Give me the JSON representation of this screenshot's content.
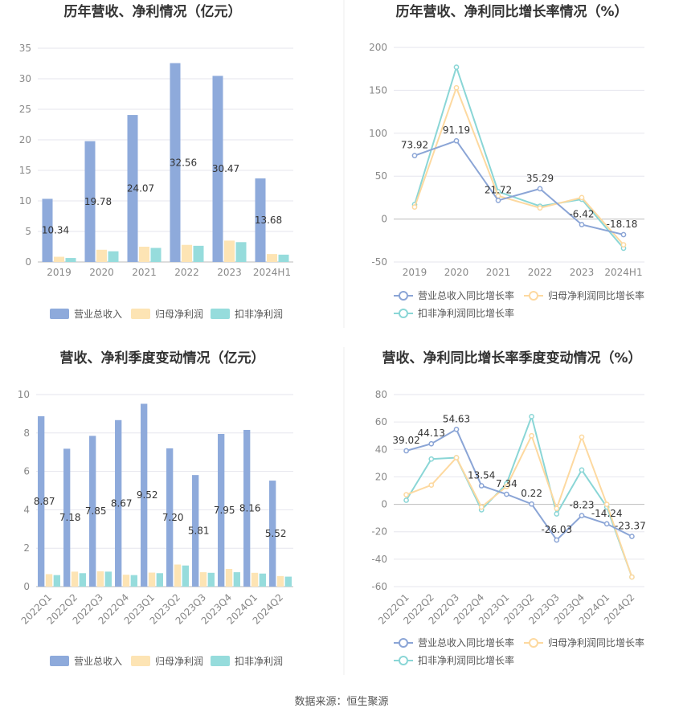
{
  "colors": {
    "revenue": "#8eaadb",
    "parent_profit": "#fde4b4",
    "deducted_profit": "#96dcdc",
    "revenue_line": "#8ba5d6",
    "parent_line": "#fdd9a0",
    "deducted_line": "#8ad6d6"
  },
  "chart_data": [
    {
      "type": "bar",
      "title": "历年营收、净利情况（亿元）",
      "categories": [
        "2019",
        "2020",
        "2021",
        "2022",
        "2023",
        "2024H1"
      ],
      "ylim": [
        0,
        35
      ],
      "yticks": [
        0,
        5,
        10,
        15,
        20,
        25,
        30,
        35
      ],
      "grid": true,
      "legend_position": "bottom",
      "series": [
        {
          "name": "营业总收入",
          "values": [
            10.34,
            19.78,
            24.07,
            32.56,
            30.47,
            13.68
          ],
          "labels": [
            "10.34",
            "19.78",
            "24.07",
            "32.56",
            "30.47",
            "13.68"
          ]
        },
        {
          "name": "归母净利润",
          "values": [
            0.85,
            2.0,
            2.5,
            2.8,
            3.5,
            1.3
          ]
        },
        {
          "name": "扣非净利润",
          "values": [
            0.65,
            1.75,
            2.3,
            2.65,
            3.25,
            1.2
          ]
        }
      ]
    },
    {
      "type": "line",
      "title": "历年营收、净利同比增长率情况（%）",
      "categories": [
        "2019",
        "2020",
        "2021",
        "2022",
        "2023",
        "2024H1"
      ],
      "ylim": [
        -50,
        200
      ],
      "yticks": [
        -50,
        0,
        50,
        100,
        150,
        200
      ],
      "grid": true,
      "legend_position": "bottom",
      "series": [
        {
          "name": "营业总收入同比增长率",
          "values": [
            73.92,
            91.19,
            21.72,
            35.29,
            -6.42,
            -18.18
          ],
          "labels": [
            "73.92",
            "91.19",
            "21.72",
            "35.29",
            "-6.42",
            "-18.18"
          ]
        },
        {
          "name": "归母净利润同比增长率",
          "values": [
            14,
            153,
            27,
            13,
            25,
            -30
          ]
        },
        {
          "name": "扣非净利润同比增长率",
          "values": [
            17,
            177,
            32,
            15,
            23,
            -34
          ]
        }
      ]
    },
    {
      "type": "bar",
      "title": "营收、净利季度变动情况（亿元）",
      "categories": [
        "2022Q1",
        "2022Q2",
        "2022Q3",
        "2022Q4",
        "2023Q1",
        "2023Q2",
        "2023Q3",
        "2023Q4",
        "2024Q1",
        "2024Q2"
      ],
      "ylim": [
        0,
        10
      ],
      "yticks": [
        0,
        2,
        4,
        6,
        8,
        10
      ],
      "grid": true,
      "legend_position": "bottom",
      "series": [
        {
          "name": "营业总收入",
          "values": [
            8.87,
            7.18,
            7.85,
            8.67,
            9.52,
            7.2,
            5.81,
            7.95,
            8.16,
            5.52
          ],
          "labels": [
            "8.87",
            "7.18",
            "7.85",
            "8.67",
            "9.52",
            "7.20",
            "5.81",
            "7.95",
            "8.16",
            "5.52"
          ]
        },
        {
          "name": "归母净利润",
          "values": [
            0.65,
            0.78,
            0.8,
            0.62,
            0.73,
            1.15,
            0.75,
            0.92,
            0.72,
            0.55
          ]
        },
        {
          "name": "扣非净利润",
          "values": [
            0.6,
            0.7,
            0.78,
            0.6,
            0.7,
            1.1,
            0.72,
            0.75,
            0.68,
            0.52
          ]
        }
      ]
    },
    {
      "type": "line",
      "title": "营收、净利同比增长率季度变动情况（%）",
      "categories": [
        "2022Q1",
        "2022Q2",
        "2022Q3",
        "2022Q4",
        "2023Q1",
        "2023Q2",
        "2023Q3",
        "2023Q4",
        "2024Q1",
        "2024Q2"
      ],
      "ylim": [
        -60,
        80
      ],
      "yticks": [
        -60,
        -40,
        -20,
        0,
        20,
        40,
        60,
        80
      ],
      "grid": true,
      "legend_position": "bottom",
      "series": [
        {
          "name": "营业总收入同比增长率",
          "values": [
            39.02,
            44.13,
            54.63,
            13.54,
            7.34,
            0.22,
            -26.03,
            -8.23,
            -14.24,
            -23.37
          ],
          "labels": [
            "39.02",
            "44.13",
            "54.63",
            "13.54",
            "7.34",
            "0.22",
            "-26.03",
            "-8.23",
            "-14.24",
            "-23.37"
          ]
        },
        {
          "name": "归母净利润同比增长率",
          "values": [
            7,
            14,
            34,
            -2,
            13,
            50,
            -3,
            49,
            0,
            -53
          ]
        },
        {
          "name": "扣非净利润同比增长率",
          "values": [
            3,
            33,
            34,
            -4,
            15,
            64,
            -7,
            25,
            -2,
            -53
          ]
        }
      ]
    }
  ],
  "footer": {
    "source": "数据来源：恒生聚源"
  }
}
